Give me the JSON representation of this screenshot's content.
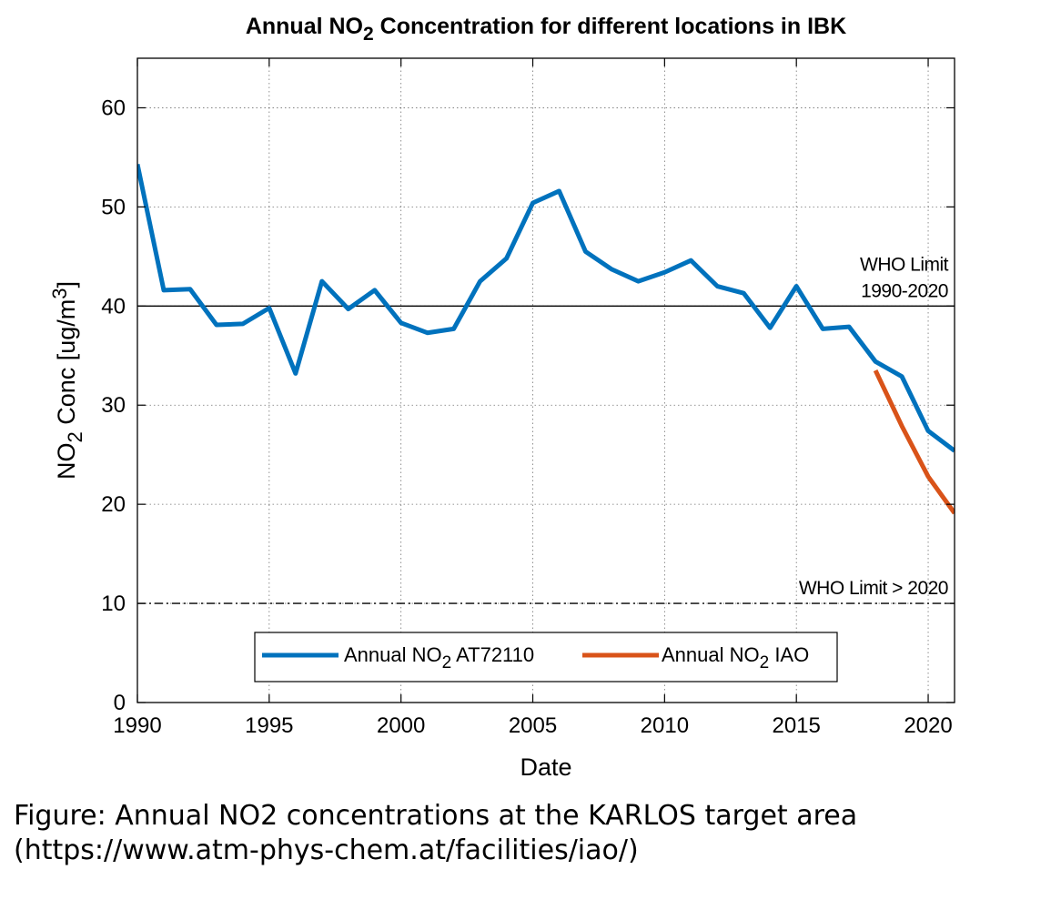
{
  "chart_data": {
    "type": "line",
    "title": {
      "prefix": "Annual NO",
      "sub": "2",
      "suffix": " Concentration for different locations in IBK"
    },
    "xlabel": "Date",
    "ylabel": {
      "prefix": "NO",
      "sub": "2",
      "middle": " Conc [ug/m",
      "sup": "3",
      "suffix": "]"
    },
    "xlim": [
      1990,
      2021
    ],
    "ylim": [
      0,
      65
    ],
    "xticks": [
      1990,
      1995,
      2000,
      2005,
      2010,
      2015,
      2020
    ],
    "yticks": [
      0,
      10,
      20,
      30,
      40,
      50,
      60
    ],
    "grid": true,
    "legend_position": "bottom-center",
    "series": [
      {
        "name": {
          "prefix": "Annual NO",
          "sub": "2",
          "suffix": " AT72110"
        },
        "color": "#0072BD",
        "x": [
          1990,
          1991,
          1992,
          1993,
          1994,
          1995,
          1996,
          1997,
          1998,
          1999,
          2000,
          2001,
          2002,
          2003,
          2004,
          2005,
          2006,
          2007,
          2008,
          2009,
          2010,
          2011,
          2012,
          2013,
          2014,
          2015,
          2016,
          2017,
          2018,
          2019,
          2020,
          2021
        ],
        "y": [
          54.3,
          41.6,
          41.7,
          38.1,
          38.2,
          39.8,
          33.2,
          42.5,
          39.7,
          41.6,
          38.3,
          37.3,
          37.7,
          42.5,
          44.8,
          50.4,
          51.6,
          45.5,
          43.7,
          42.5,
          43.4,
          44.6,
          42.0,
          41.3,
          37.8,
          42.0,
          37.7,
          37.9,
          34.4,
          32.9,
          27.4,
          25.4
        ]
      },
      {
        "name": {
          "prefix": "Annual NO",
          "sub": "2",
          "suffix": " IAO"
        },
        "color": "#D95319",
        "x": [
          2018,
          2019,
          2020,
          2021
        ],
        "y": [
          33.5,
          27.9,
          22.8,
          19.1
        ]
      }
    ],
    "reference_lines": [
      {
        "value": 40,
        "style": "solid",
        "label_lines": [
          "WHO Limit",
          "1990-2020"
        ]
      },
      {
        "value": 10,
        "style": "dashdot",
        "label_lines": [
          "WHO Limit > 2020"
        ]
      }
    ]
  },
  "caption": {
    "line1": "Figure: Annual NO2 concentrations at the KARLOS target area",
    "line2": "(https://www.atm-phys-chem.at/facilities/iao/)"
  }
}
